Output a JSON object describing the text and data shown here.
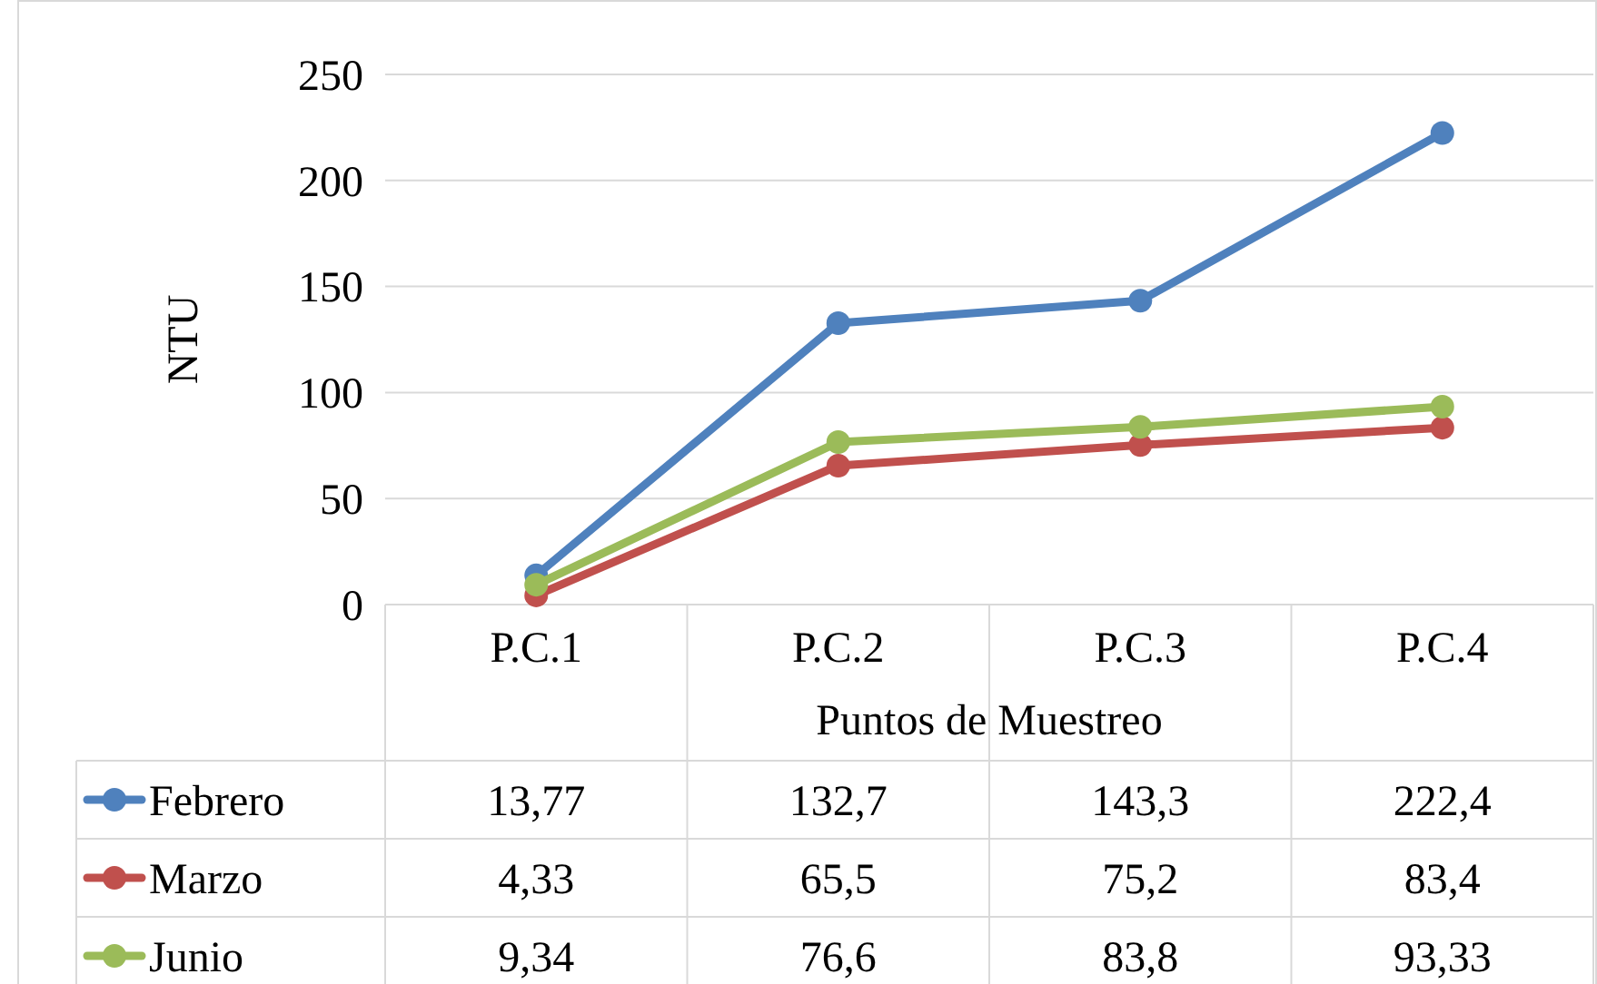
{
  "chart_data": {
    "type": "line",
    "ylabel": "NTU",
    "xlabel": "Puntos de Muestreo",
    "categories": [
      "P.C.1",
      "P.C.2",
      "P.C.3",
      "P.C.4"
    ],
    "ylim": [
      0,
      250
    ],
    "yticks": [
      0,
      50,
      100,
      150,
      200,
      250
    ],
    "grid": "y",
    "legend": "bottom",
    "marker": "circle",
    "line_style": "solid",
    "series": [
      {
        "name": "Febrero",
        "color": "#4f81bd",
        "values": [
          13.77,
          132.7,
          143.3,
          222.4
        ],
        "value_labels": [
          "13,77",
          "132,7",
          "143,3",
          "222,4"
        ]
      },
      {
        "name": "Marzo",
        "color": "#c0504d",
        "values": [
          4.33,
          65.5,
          75.2,
          83.4
        ],
        "value_labels": [
          "4,33",
          "65,5",
          "75,2",
          "83,4"
        ]
      },
      {
        "name": "Junio",
        "color": "#9bbb59",
        "values": [
          9.34,
          76.6,
          83.8,
          93.33
        ],
        "value_labels": [
          "9,34",
          "76,6",
          "83,8",
          "93,33"
        ]
      }
    ]
  }
}
